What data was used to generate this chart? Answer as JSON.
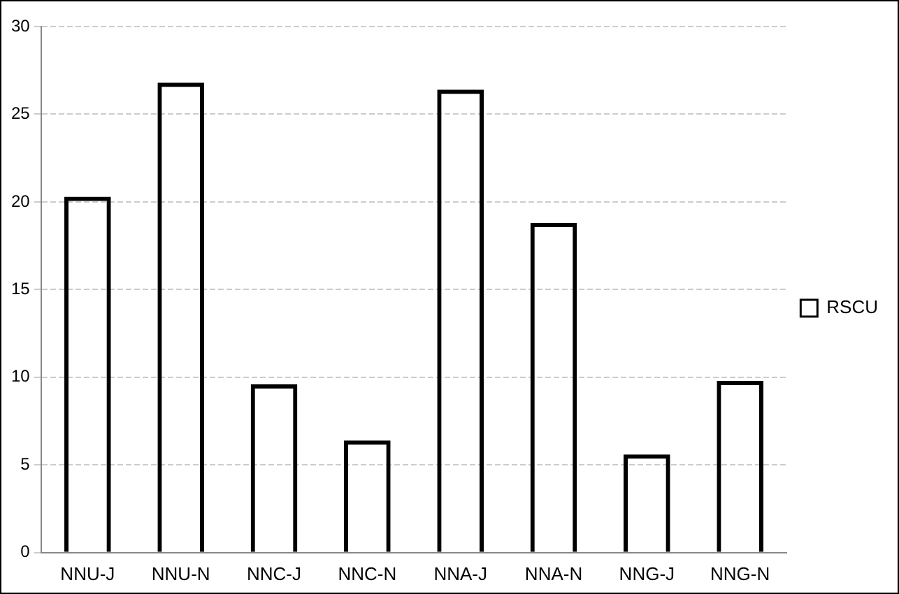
{
  "chart_data": {
    "type": "bar",
    "categories": [
      "NNU-J",
      "NNU-N",
      "NNC-J",
      "NNC-N",
      "NNA-J",
      "NNA-N",
      "NNG-J",
      "NNG-N"
    ],
    "series": [
      {
        "name": "RSCU",
        "color": "#000000",
        "values": [
          20.3,
          26.8,
          9.6,
          6.4,
          26.4,
          18.8,
          5.6,
          9.8
        ]
      }
    ],
    "ylim": [
      0,
      30
    ],
    "yticks": [
      0,
      5,
      10,
      15,
      20,
      25,
      30
    ],
    "grid": "y",
    "legend": "right"
  }
}
